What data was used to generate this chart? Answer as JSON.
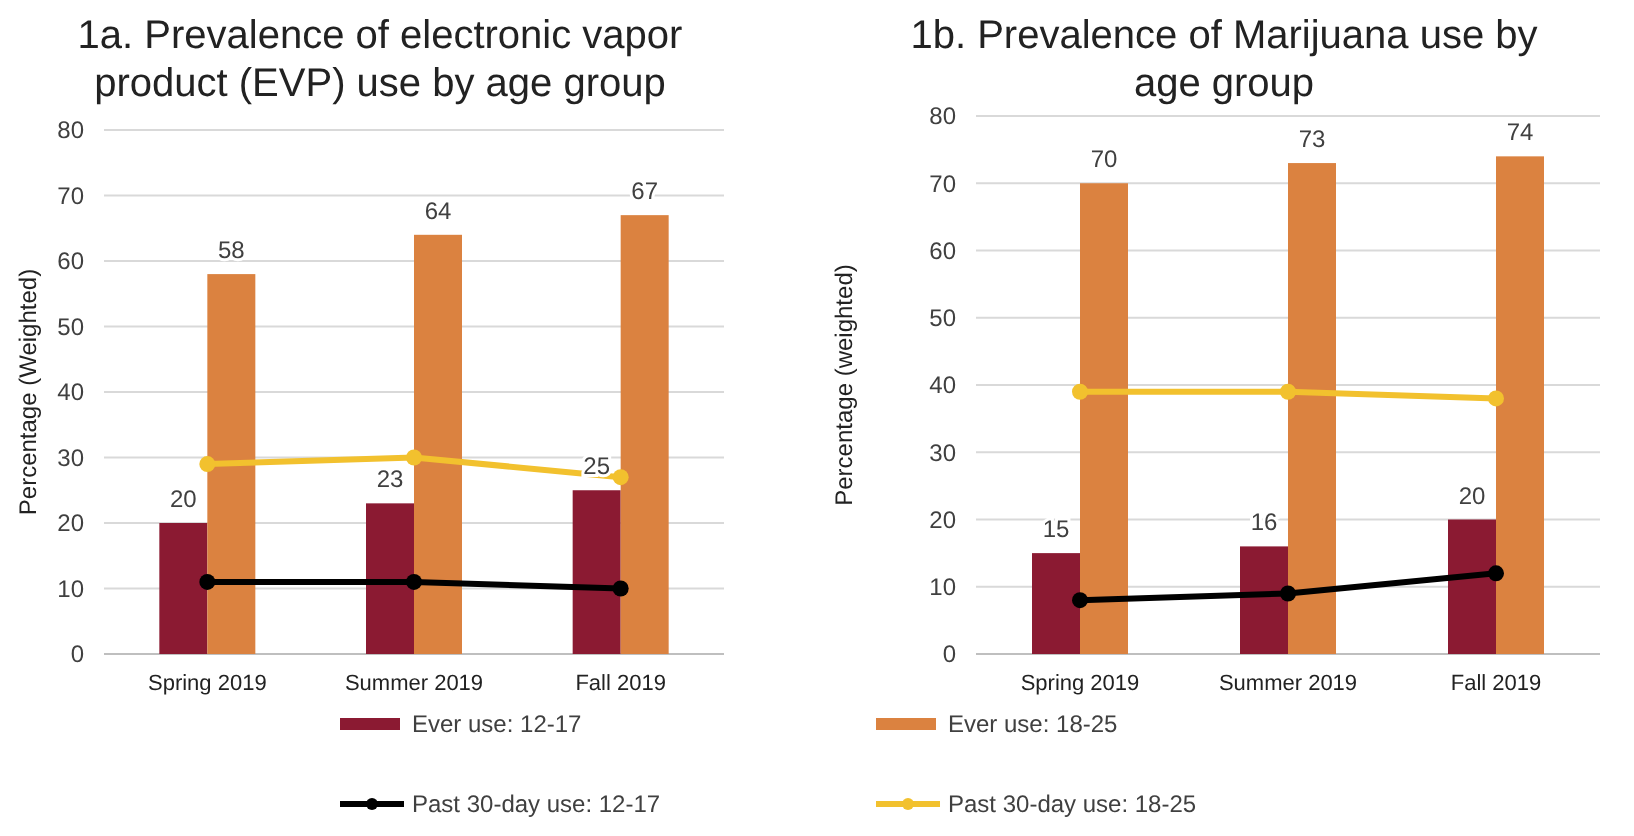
{
  "chart_data": [
    {
      "type": "bar",
      "title": "1a. Prevalence of electronic vapor product (EVP) use by age group",
      "ylabel": "Percentage (Weighted)",
      "categories": [
        "Spring 2019",
        "Summer 2019",
        "Fall 2019"
      ],
      "ylim": [
        0,
        80
      ],
      "yticks": [
        0,
        10,
        20,
        30,
        40,
        50,
        60,
        70,
        80
      ],
      "grid": "y",
      "legend": "bottom",
      "series": [
        {
          "name": "Ever use: 12-17",
          "color": "#8b1a32",
          "values": [
            20,
            23,
            25
          ],
          "value_labels": [
            "20",
            "23",
            "25"
          ]
        },
        {
          "name": "Ever use: 18-25",
          "color": "#db8240",
          "values": [
            58,
            64,
            67
          ],
          "value_labels": [
            "58",
            "64",
            "67"
          ]
        },
        {
          "name": "Past 30-day use: 12-17",
          "type": "line",
          "color": "#000000",
          "marker": "circle",
          "values": [
            11,
            11,
            10
          ]
        },
        {
          "name": "Past 30-day use: 18-25",
          "type": "line",
          "color": "#f2c12e",
          "marker": "circle",
          "values": [
            29,
            30,
            27
          ]
        }
      ]
    },
    {
      "type": "bar",
      "title": "1b. Prevalence of Marijuana use by age group",
      "ylabel": "Percentage (weighted)",
      "categories": [
        "Spring 2019",
        "Summer 2019",
        "Fall 2019"
      ],
      "ylim": [
        0,
        80
      ],
      "yticks": [
        0,
        10,
        20,
        30,
        40,
        50,
        60,
        70,
        80
      ],
      "grid": "y",
      "series": [
        {
          "color": "#8b1a32",
          "values": [
            15,
            16,
            20
          ],
          "value_labels": [
            "15",
            "16",
            "20"
          ]
        },
        {
          "color": "#db8240",
          "values": [
            70,
            73,
            74
          ],
          "value_labels": [
            "70",
            "73",
            "74"
          ]
        },
        {
          "type": "line",
          "color": "#000000",
          "marker": "circle",
          "values": [
            8,
            9,
            12
          ]
        },
        {
          "type": "line",
          "color": "#f2c12e",
          "marker": "circle",
          "values": [
            39,
            39,
            38
          ]
        }
      ]
    }
  ]
}
